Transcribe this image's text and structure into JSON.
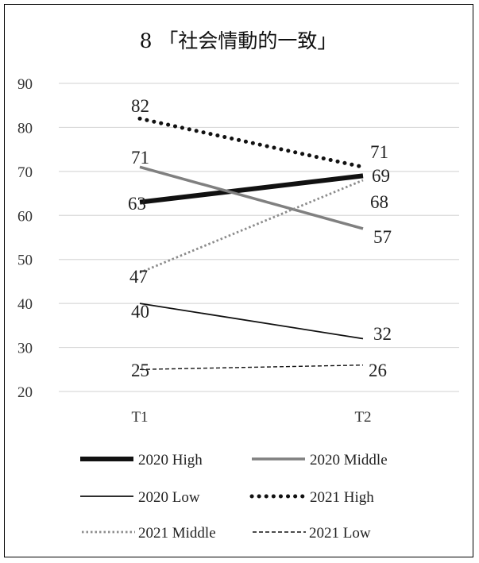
{
  "chart_data": {
    "type": "line",
    "title": "8 「社会情動的一致」",
    "categories": [
      "T1",
      "T2"
    ],
    "ylim": [
      20,
      90
    ],
    "yticks": [
      20,
      30,
      40,
      50,
      60,
      70,
      80,
      90
    ],
    "grid": true,
    "legend_position": "bottom",
    "series": [
      {
        "name": "2020 High",
        "values": [
          63,
          69
        ],
        "color": "#111111",
        "style": "thick-solid"
      },
      {
        "name": "2020 Middle",
        "values": [
          71,
          57
        ],
        "color": "#808080",
        "style": "solid"
      },
      {
        "name": "2020 Low",
        "values": [
          40,
          32
        ],
        "color": "#111111",
        "style": "thin-solid"
      },
      {
        "name": "2021 High",
        "values": [
          82,
          71
        ],
        "color": "#111111",
        "style": "round-dot"
      },
      {
        "name": "2021 Middle",
        "values": [
          47,
          68
        ],
        "color": "#8c8c8c",
        "style": "dot"
      },
      {
        "name": "2021 Low",
        "values": [
          25,
          26
        ],
        "color": "#111111",
        "style": "dash"
      }
    ]
  }
}
